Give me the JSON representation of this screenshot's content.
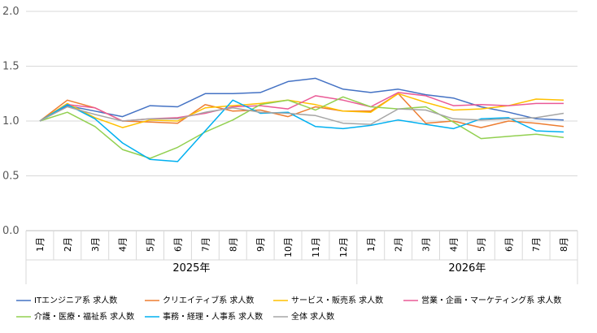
{
  "chart_data": {
    "type": "line",
    "title": "",
    "ylim": [
      0,
      2
    ],
    "y_ticks": [
      "0.0",
      "0.5",
      "1.0",
      "1.5",
      "2.0"
    ],
    "categories": [
      "1月",
      "2月",
      "3月",
      "4月",
      "5月",
      "6月",
      "7月",
      "8月",
      "9月",
      "10月",
      "11月",
      "12月",
      "1月",
      "2月",
      "3月",
      "4月",
      "5月",
      "6月",
      "7月",
      "8月"
    ],
    "year_groups": [
      {
        "label": "2025年",
        "count": 12
      },
      {
        "label": "2026年",
        "count": 8
      }
    ],
    "grid": "horizontal",
    "legend_position": "bottom",
    "series": [
      {
        "name": "ITエンジニア系 求人数",
        "color": "#4472c4",
        "values": [
          1.0,
          1.14,
          1.09,
          1.04,
          1.14,
          1.13,
          1.25,
          1.25,
          1.26,
          1.36,
          1.39,
          1.29,
          1.26,
          1.29,
          1.24,
          1.21,
          1.13,
          1.08,
          1.02,
          1.01
        ]
      },
      {
        "name": "クリエイティブ系 求人数",
        "color": "#ed7d31",
        "values": [
          1.0,
          1.19,
          1.12,
          1.0,
          0.99,
          0.98,
          1.15,
          1.09,
          1.1,
          1.04,
          1.13,
          1.09,
          1.09,
          1.25,
          0.98,
          1.0,
          0.94,
          1.0,
          0.98,
          0.95
        ]
      },
      {
        "name": "サービス・販売系 求人数",
        "color": "#ffc000",
        "values": [
          1.0,
          1.16,
          1.03,
          0.94,
          1.01,
          1.0,
          1.12,
          1.14,
          1.16,
          1.19,
          1.15,
          1.09,
          1.08,
          1.25,
          1.17,
          1.1,
          1.11,
          1.14,
          1.2,
          1.19
        ]
      },
      {
        "name": "営業・企画・マーケティング系 求人数",
        "color": "#ea5a96",
        "values": [
          1.0,
          1.15,
          1.12,
          1.0,
          1.02,
          1.03,
          1.07,
          1.13,
          1.14,
          1.11,
          1.23,
          1.19,
          1.13,
          1.26,
          1.23,
          1.14,
          1.15,
          1.14,
          1.16,
          1.16
        ]
      },
      {
        "name": "介護・医療・福祉系 求人数",
        "color": "#92d050",
        "values": [
          1.0,
          1.08,
          0.95,
          0.74,
          0.66,
          0.76,
          0.9,
          1.01,
          1.15,
          1.19,
          1.1,
          1.22,
          1.13,
          1.11,
          1.13,
          0.99,
          0.84,
          0.86,
          0.88,
          0.85
        ]
      },
      {
        "name": "事務・経理・人事系 求人数",
        "color": "#00b0f0",
        "values": [
          1.0,
          1.15,
          1.02,
          0.8,
          0.65,
          0.63,
          0.91,
          1.19,
          1.07,
          1.08,
          0.95,
          0.93,
          0.96,
          1.01,
          0.97,
          0.93,
          1.02,
          1.03,
          0.91,
          0.9
        ]
      },
      {
        "name": "全体 求人数",
        "color": "#a5a5a5",
        "values": [
          1.0,
          1.13,
          1.06,
          1.0,
          1.02,
          1.02,
          1.08,
          1.12,
          1.08,
          1.07,
          1.05,
          0.98,
          0.97,
          1.11,
          1.1,
          1.02,
          1.01,
          1.02,
          1.03,
          1.07
        ]
      }
    ]
  }
}
